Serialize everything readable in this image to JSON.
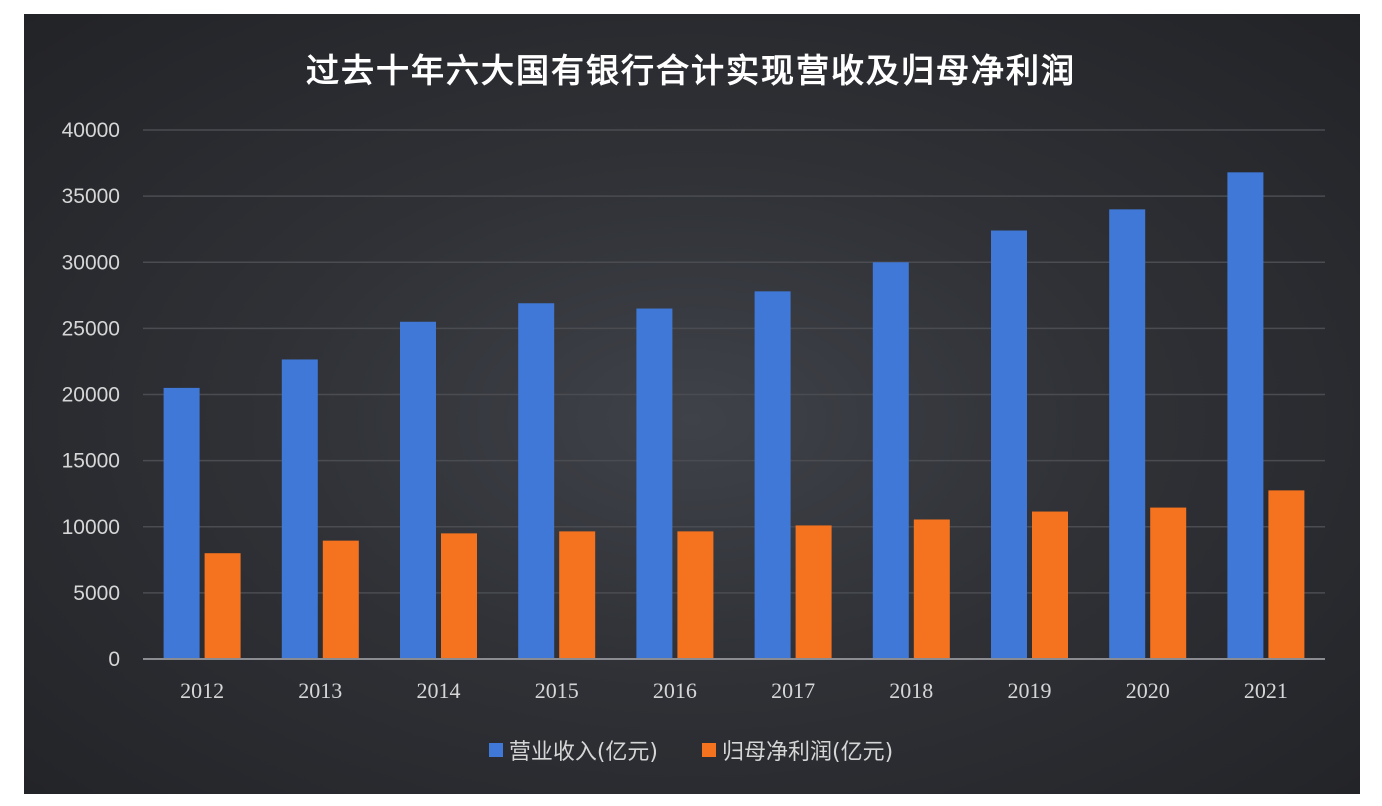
{
  "chart_data": {
    "type": "bar",
    "title": "过去十年六大国有银行合计实现营收及归母净利润",
    "categories": [
      "2012",
      "2013",
      "2014",
      "2015",
      "2016",
      "2017",
      "2018",
      "2019",
      "2020",
      "2021"
    ],
    "series": [
      {
        "name": "营业收入(亿元)",
        "color": "#3f78d6",
        "values": [
          20500,
          22650,
          25500,
          26900,
          26500,
          27800,
          30000,
          32400,
          34000,
          36800
        ]
      },
      {
        "name": "归母净利润(亿元)",
        "color": "#f5721e",
        "values": [
          8000,
          8950,
          9500,
          9650,
          9650,
          10100,
          10550,
          11150,
          11450,
          12750
        ]
      }
    ],
    "ylim": [
      0,
      40000
    ],
    "yticks": [
      0,
      5000,
      10000,
      15000,
      20000,
      25000,
      30000,
      35000,
      40000
    ],
    "grid": true,
    "legend_position": "bottom"
  }
}
